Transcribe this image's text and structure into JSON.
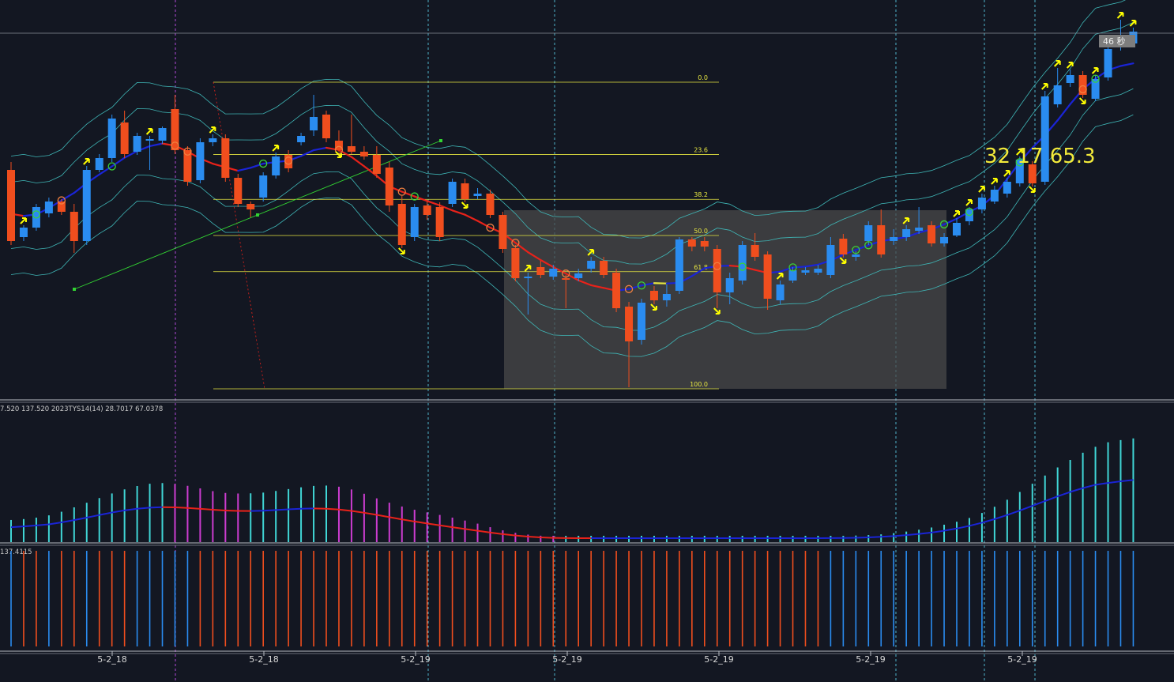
{
  "chart_data": {
    "type": "candlestick",
    "panes": [
      {
        "name": "price",
        "indicators": [
          "Bollinger bands",
          "moving average",
          "Fibonacci retracement",
          "trend line"
        ]
      },
      {
        "name": "oscillator",
        "label": "7.520 137.520  2023TYS14(14) 28.7017 67.0378"
      },
      {
        "name": "direction",
        "label": "137.4115"
      }
    ],
    "x_axis": {
      "tick_labels": [
        "5-2_18",
        "5-2_18",
        "5-2_19",
        "5-2_19",
        "5-2_19",
        "5-2_19",
        "5-2_19"
      ]
    },
    "fibonacci": {
      "levels": [
        "0.0",
        "23.6",
        "38.2",
        "50.0",
        "61.8",
        "100.0"
      ],
      "values": [
        0.0,
        23.6,
        38.2,
        50.0,
        61.8,
        100.0
      ]
    },
    "readout": "32 17 65.3",
    "countdown": "46 秒",
    "candles_approx": [
      {
        "o": 215,
        "c": 305,
        "h": 205,
        "l": 310,
        "dir": "down"
      },
      {
        "o": 300,
        "c": 288,
        "h": 285,
        "l": 305,
        "dir": "up"
      },
      {
        "o": 288,
        "c": 262,
        "h": 258,
        "l": 292,
        "dir": "up"
      },
      {
        "o": 270,
        "c": 255,
        "h": 250,
        "l": 275,
        "dir": "up"
      },
      {
        "o": 255,
        "c": 268,
        "h": 252,
        "l": 272,
        "dir": "down"
      },
      {
        "o": 268,
        "c": 305,
        "h": 258,
        "l": 320,
        "dir": "down"
      },
      {
        "o": 305,
        "c": 215,
        "h": 210,
        "l": 310,
        "dir": "up"
      },
      {
        "o": 215,
        "c": 200,
        "h": 195,
        "l": 218,
        "dir": "up"
      },
      {
        "o": 200,
        "c": 150,
        "h": 145,
        "l": 205,
        "dir": "up"
      },
      {
        "o": 155,
        "c": 195,
        "h": 140,
        "l": 200,
        "dir": "down"
      },
      {
        "o": 192,
        "c": 172,
        "h": 168,
        "l": 196,
        "dir": "up"
      },
      {
        "o": 178,
        "c": 176,
        "h": 172,
        "l": 215,
        "dir": "up"
      },
      {
        "o": 178,
        "c": 162,
        "h": 160,
        "l": 182,
        "dir": "up"
      },
      {
        "o": 138,
        "c": 190,
        "h": 120,
        "l": 195,
        "dir": "down"
      },
      {
        "o": 190,
        "c": 230,
        "h": 185,
        "l": 235,
        "dir": "down"
      },
      {
        "o": 228,
        "c": 180,
        "h": 175,
        "l": 232,
        "dir": "up"
      },
      {
        "o": 180,
        "c": 175,
        "h": 170,
        "l": 185,
        "dir": "up"
      },
      {
        "o": 175,
        "c": 225,
        "h": 170,
        "l": 230,
        "dir": "down"
      },
      {
        "o": 225,
        "c": 258,
        "h": 220,
        "l": 262,
        "dir": "down"
      },
      {
        "o": 258,
        "c": 265,
        "h": 255,
        "l": 275,
        "dir": "down"
      },
      {
        "o": 250,
        "c": 222,
        "h": 218,
        "l": 255,
        "dir": "up"
      },
      {
        "o": 222,
        "c": 198,
        "h": 193,
        "l": 226,
        "dir": "up"
      },
      {
        "o": 196,
        "c": 213,
        "h": 190,
        "l": 218,
        "dir": "down"
      },
      {
        "o": 180,
        "c": 172,
        "h": 168,
        "l": 184,
        "dir": "up"
      },
      {
        "o": 165,
        "c": 148,
        "h": 120,
        "l": 172,
        "dir": "up"
      },
      {
        "o": 145,
        "c": 175,
        "h": 140,
        "l": 180,
        "dir": "down"
      },
      {
        "o": 178,
        "c": 190,
        "h": 165,
        "l": 192,
        "dir": "down"
      },
      {
        "o": 185,
        "c": 192,
        "h": 145,
        "l": 195,
        "dir": "down"
      },
      {
        "o": 192,
        "c": 198,
        "h": 185,
        "l": 202,
        "dir": "down"
      },
      {
        "o": 196,
        "c": 220,
        "h": 185,
        "l": 225,
        "dir": "down"
      },
      {
        "o": 212,
        "c": 260,
        "h": 205,
        "l": 268,
        "dir": "down"
      },
      {
        "o": 258,
        "c": 310,
        "h": 248,
        "l": 314,
        "dir": "down"
      },
      {
        "o": 300,
        "c": 262,
        "h": 258,
        "l": 305,
        "dir": "up"
      },
      {
        "o": 260,
        "c": 272,
        "h": 255,
        "l": 278,
        "dir": "down"
      },
      {
        "o": 262,
        "c": 300,
        "h": 256,
        "l": 305,
        "dir": "down"
      },
      {
        "o": 258,
        "c": 230,
        "h": 226,
        "l": 262,
        "dir": "up"
      },
      {
        "o": 232,
        "c": 252,
        "h": 226,
        "l": 256,
        "dir": "down"
      },
      {
        "o": 245,
        "c": 248,
        "h": 238,
        "l": 252,
        "dir": "up"
      },
      {
        "o": 245,
        "c": 272,
        "h": 240,
        "l": 276,
        "dir": "down"
      },
      {
        "o": 272,
        "c": 315,
        "h": 268,
        "l": 320,
        "dir": "down"
      },
      {
        "o": 314,
        "c": 352,
        "h": 310,
        "l": 356,
        "dir": "down"
      },
      {
        "o": 352,
        "c": 350,
        "h": 345,
        "l": 398,
        "dir": "up"
      },
      {
        "o": 338,
        "c": 348,
        "h": 330,
        "l": 352,
        "dir": "down"
      },
      {
        "o": 350,
        "c": 340,
        "h": 335,
        "l": 354,
        "dir": "up"
      },
      {
        "o": 352,
        "c": 354,
        "h": 348,
        "l": 390,
        "dir": "down"
      },
      {
        "o": 352,
        "c": 346,
        "h": 340,
        "l": 356,
        "dir": "up"
      },
      {
        "o": 340,
        "c": 330,
        "h": 325,
        "l": 345,
        "dir": "up"
      },
      {
        "o": 330,
        "c": 348,
        "h": 325,
        "l": 352,
        "dir": "down"
      },
      {
        "o": 345,
        "c": 390,
        "h": 340,
        "l": 395,
        "dir": "down"
      },
      {
        "o": 388,
        "c": 432,
        "h": 382,
        "l": 490,
        "dir": "down"
      },
      {
        "o": 430,
        "c": 383,
        "h": 378,
        "l": 436,
        "dir": "up"
      },
      {
        "o": 380,
        "c": 368,
        "h": 362,
        "l": 385,
        "dir": "down"
      },
      {
        "o": 380,
        "c": 372,
        "h": 360,
        "l": 388,
        "dir": "up"
      },
      {
        "o": 368,
        "c": 303,
        "h": 300,
        "l": 372,
        "dir": "up"
      },
      {
        "o": 303,
        "c": 312,
        "h": 300,
        "l": 318,
        "dir": "down"
      },
      {
        "o": 305,
        "c": 312,
        "h": 300,
        "l": 318,
        "dir": "down"
      },
      {
        "o": 315,
        "c": 370,
        "h": 310,
        "l": 390,
        "dir": "down"
      },
      {
        "o": 370,
        "c": 352,
        "h": 345,
        "l": 385,
        "dir": "up"
      },
      {
        "o": 355,
        "c": 310,
        "h": 305,
        "l": 360,
        "dir": "up"
      },
      {
        "o": 310,
        "c": 325,
        "h": 295,
        "l": 330,
        "dir": "down"
      },
      {
        "o": 322,
        "c": 378,
        "h": 318,
        "l": 392,
        "dir": "down"
      },
      {
        "o": 380,
        "c": 360,
        "h": 355,
        "l": 385,
        "dir": "up"
      },
      {
        "o": 355,
        "c": 342,
        "h": 338,
        "l": 358,
        "dir": "up"
      },
      {
        "o": 345,
        "c": 342,
        "h": 338,
        "l": 348,
        "dir": "up"
      },
      {
        "o": 345,
        "c": 340,
        "h": 335,
        "l": 348,
        "dir": "up"
      },
      {
        "o": 348,
        "c": 310,
        "h": 300,
        "l": 352,
        "dir": "up"
      },
      {
        "o": 302,
        "c": 322,
        "h": 296,
        "l": 326,
        "dir": "down"
      },
      {
        "o": 325,
        "c": 322,
        "h": 318,
        "l": 330,
        "dir": "up"
      },
      {
        "o": 305,
        "c": 285,
        "h": 280,
        "l": 310,
        "dir": "up"
      },
      {
        "o": 285,
        "c": 322,
        "h": 265,
        "l": 326,
        "dir": "down"
      },
      {
        "o": 305,
        "c": 300,
        "h": 290,
        "l": 310,
        "dir": "up"
      },
      {
        "o": 300,
        "c": 290,
        "h": 285,
        "l": 305,
        "dir": "up"
      },
      {
        "o": 292,
        "c": 288,
        "h": 262,
        "l": 296,
        "dir": "up"
      },
      {
        "o": 285,
        "c": 308,
        "h": 280,
        "l": 312,
        "dir": "down"
      },
      {
        "o": 308,
        "c": 300,
        "h": 295,
        "l": 312,
        "dir": "up"
      },
      {
        "o": 298,
        "c": 282,
        "h": 276,
        "l": 300,
        "dir": "up"
      },
      {
        "o": 280,
        "c": 265,
        "h": 262,
        "l": 285,
        "dir": "up"
      },
      {
        "o": 265,
        "c": 250,
        "h": 245,
        "l": 270,
        "dir": "up"
      },
      {
        "o": 255,
        "c": 240,
        "h": 235,
        "l": 258,
        "dir": "up"
      },
      {
        "o": 245,
        "c": 230,
        "h": 225,
        "l": 250,
        "dir": "up"
      },
      {
        "o": 232,
        "c": 202,
        "h": 198,
        "l": 236,
        "dir": "up"
      },
      {
        "o": 208,
        "c": 232,
        "h": 204,
        "l": 236,
        "dir": "down"
      },
      {
        "o": 230,
        "c": 122,
        "h": 115,
        "l": 234,
        "dir": "up"
      },
      {
        "o": 132,
        "c": 108,
        "h": 86,
        "l": 136,
        "dir": "up"
      },
      {
        "o": 105,
        "c": 95,
        "h": 88,
        "l": 110,
        "dir": "up"
      },
      {
        "o": 95,
        "c": 120,
        "h": 90,
        "l": 124,
        "dir": "down"
      },
      {
        "o": 125,
        "c": 100,
        "h": 95,
        "l": 128,
        "dir": "up"
      },
      {
        "o": 98,
        "c": 62,
        "h": 55,
        "l": 102,
        "dir": "up"
      },
      {
        "o": 60,
        "c": 47,
        "h": 25,
        "l": 64,
        "dir": "up"
      },
      {
        "o": 55,
        "c": 40,
        "h": 35,
        "l": 58,
        "dir": "up"
      }
    ]
  },
  "colors": {
    "background": "#131722",
    "up": "#2a8cf0",
    "down": "#f04e1e",
    "band": "#3fb7b7",
    "ma_falling": "#e8221a",
    "ma_rising": "#1a24d6",
    "fib": "#e6e641",
    "arrow": "#ffff00",
    "hist_up": "#40d6d6",
    "hist_down": "#cc3cd0",
    "bar_up": "#2a8cf0",
    "bar_down": "#f04e1e",
    "zone": "#4a4a4a"
  }
}
